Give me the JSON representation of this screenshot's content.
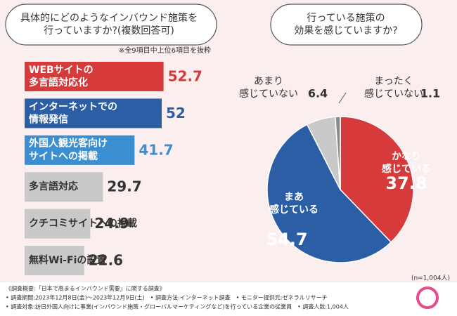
{
  "chart_data": [
    {
      "type": "bar",
      "title": "具体的にどのようなインバウンド施策を\n行っていますか?(複数回答可)",
      "note": "※全9項目中上位6項目を抜粋",
      "categories": [
        "WEBサイトの\n多言語対応化",
        "インターネットでの\n情報発信",
        "外国人観光客向け\nサイトへの掲載",
        "多言語対応",
        "クチコミサイトへの掲載",
        "無料Wi-Fiの設置"
      ],
      "values": [
        52.7,
        52.0,
        41.7,
        29.7,
        24.9,
        22.6
      ],
      "colors": [
        "#d63a3a",
        "#2c5ea6",
        "#3b8fd0",
        "#c9c9c9",
        "#c9c9c9",
        "#c9c9c9"
      ]
    },
    {
      "type": "pie",
      "title": "行っている施策の\n効果を感じていますか?",
      "note": "(n=1,004人)",
      "categories": [
        "かなり\n感じている",
        "まあ\n感じている",
        "あまり\n感じていない",
        "まったく\n感じていない"
      ],
      "values": [
        37.8,
        54.7,
        6.4,
        1.1
      ],
      "colors": [
        "#d63a3a",
        "#2c5ea6",
        "#c9c9c9",
        "#8a8a8a"
      ]
    }
  ],
  "footer": [
    "《調査概要:「日本で高まるインバウンド需要」に関する調査》",
    "• 調査期間:2023年12月8日(金)〜2023年12月9日(土)　• 調査方法:インターネット調査　• モニター提供元:ゼネラルリサーチ",
    "• 調査対象:訪日外国人向けに事業(インバウンド施策・グローバルマーケティングなど)を行っている企業の従業員　• 調査人数:1,004人"
  ]
}
